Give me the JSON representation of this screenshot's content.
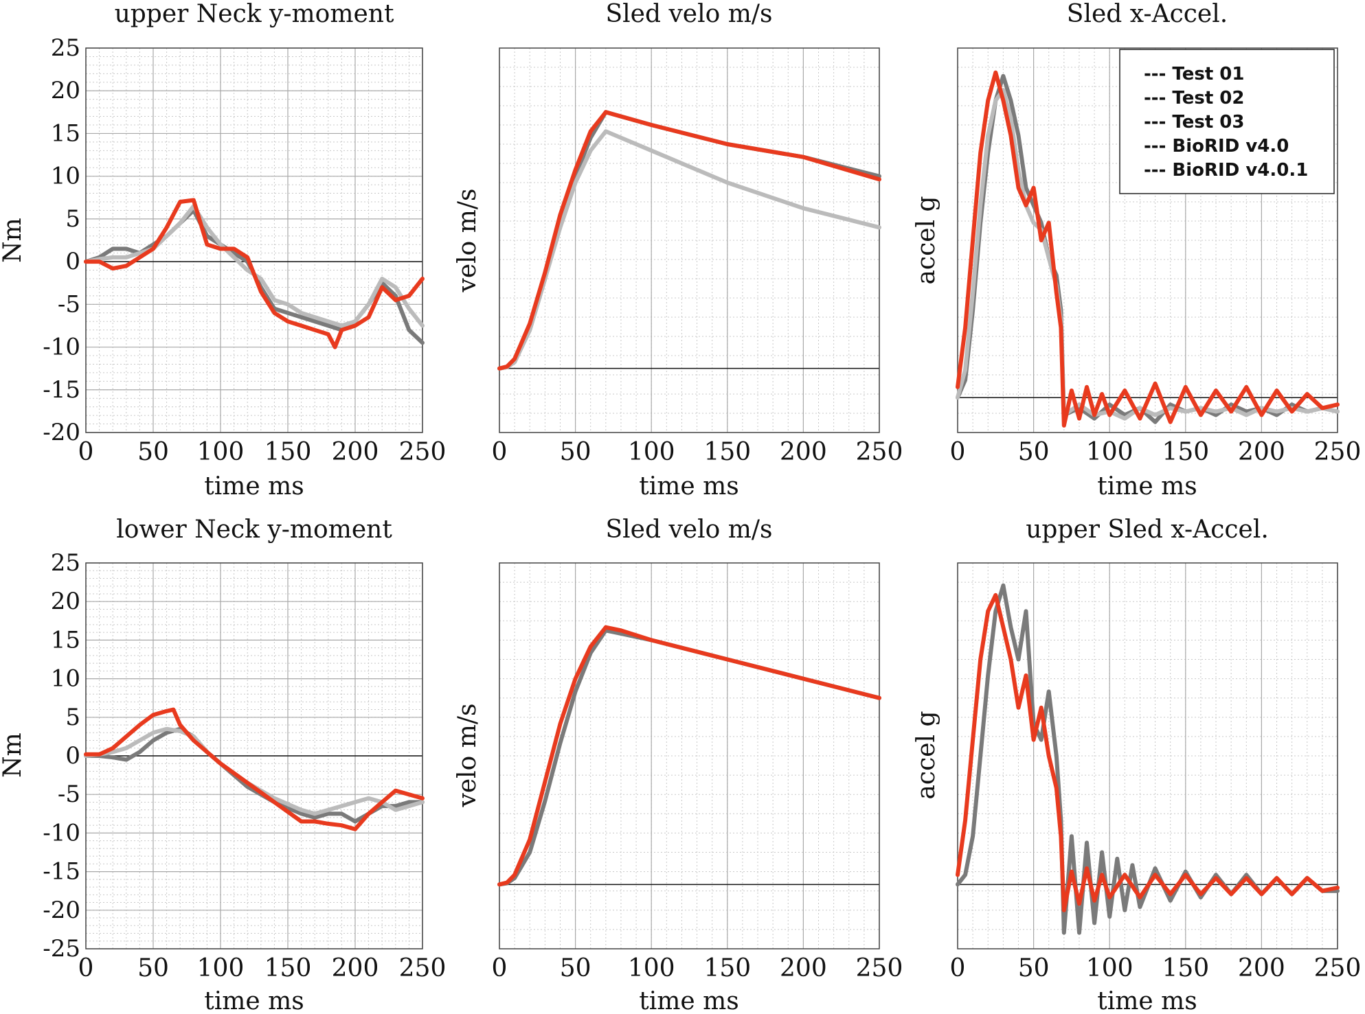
{
  "legend": {
    "entries": [
      {
        "label": "--- Test 01",
        "color": "#000000"
      },
      {
        "label": "--- Test 02",
        "color": "#808080"
      },
      {
        "label": "--- Test 03",
        "color": "#b4b4b4"
      },
      {
        "label": "--- BioRID v4.0",
        "color": "#109010"
      },
      {
        "label": "--- BioRID v4.0.1",
        "color": "#ee2200"
      }
    ]
  },
  "series_colors": {
    "Test 01": "#000000",
    "Test 02": "#7a7a7a",
    "Test 03": "#bbbbbb",
    "BioRID v4.0.1": "#e83a1e"
  },
  "chart_data": [
    {
      "type": "line",
      "title": "upper Neck y-moment",
      "xlabel": "time ms",
      "ylabel": "Nm",
      "xlim": [
        0,
        250
      ],
      "ylim": [
        -20,
        25
      ],
      "xticks": [
        0,
        50,
        100,
        150,
        200,
        250
      ],
      "yticks": [
        -20,
        -15,
        -10,
        -5,
        0,
        5,
        10,
        15,
        20,
        25
      ],
      "grid": true,
      "legend": "none",
      "series": [
        {
          "name": "Test 02",
          "x": [
            0,
            10,
            20,
            30,
            40,
            50,
            60,
            70,
            80,
            90,
            100,
            110,
            120,
            130,
            140,
            150,
            160,
            170,
            180,
            190,
            200,
            210,
            220,
            230,
            240,
            250
          ],
          "y": [
            0,
            0.5,
            1.5,
            1.5,
            1,
            2,
            3,
            4.5,
            6,
            3,
            2,
            1,
            0,
            -3,
            -5.5,
            -6,
            -6.5,
            -7,
            -7.5,
            -8,
            -7,
            -5,
            -2.5,
            -4,
            -8,
            -9.5
          ]
        },
        {
          "name": "Test 03",
          "x": [
            0,
            10,
            20,
            30,
            40,
            50,
            60,
            70,
            80,
            90,
            100,
            110,
            120,
            130,
            140,
            150,
            160,
            170,
            180,
            190,
            200,
            210,
            220,
            230,
            240,
            250
          ],
          "y": [
            0,
            0.3,
            0.5,
            0.5,
            1,
            1.5,
            3,
            4.5,
            6.5,
            4,
            2,
            0.5,
            -1,
            -2,
            -4.5,
            -5,
            -6,
            -6.5,
            -7,
            -7.5,
            -7,
            -5,
            -2,
            -3,
            -5.5,
            -7.5
          ]
        },
        {
          "name": "BioRID v4.0.1",
          "x": [
            0,
            10,
            20,
            30,
            40,
            50,
            60,
            70,
            80,
            90,
            100,
            110,
            120,
            130,
            140,
            150,
            160,
            170,
            180,
            185,
            190,
            200,
            210,
            220,
            230,
            240,
            250
          ],
          "y": [
            0,
            0,
            -0.8,
            -0.5,
            0.5,
            1.5,
            4,
            7,
            7.2,
            2,
            1.5,
            1.5,
            0.5,
            -3.5,
            -6,
            -7,
            -7.5,
            -8,
            -8.5,
            -10,
            -8,
            -7.5,
            -6.5,
            -3,
            -4.5,
            -4,
            -2
          ]
        }
      ]
    },
    {
      "type": "line",
      "title": "Sled velo m/s",
      "xlabel": "time ms",
      "ylabel": "velo m/s",
      "xlim": [
        0,
        250
      ],
      "ylim": [
        -1,
        5
      ],
      "xticks": [
        0,
        50,
        100,
        150,
        200,
        250
      ],
      "yticks": [],
      "grid": true,
      "legend": "none",
      "series": [
        {
          "name": "Test 02",
          "x": [
            0,
            5,
            10,
            20,
            30,
            40,
            50,
            60,
            70,
            100,
            150,
            200,
            250
          ],
          "y": [
            0,
            0.02,
            0.1,
            0.6,
            1.4,
            2.3,
            3.0,
            3.6,
            4.0,
            3.8,
            3.5,
            3.3,
            3.0
          ]
        },
        {
          "name": "Test 03",
          "x": [
            0,
            5,
            10,
            20,
            30,
            40,
            50,
            60,
            70,
            100,
            150,
            200,
            250
          ],
          "y": [
            0,
            0.02,
            0.1,
            0.6,
            1.4,
            2.2,
            2.9,
            3.4,
            3.7,
            3.4,
            2.9,
            2.5,
            2.2
          ]
        },
        {
          "name": "BioRID v4.0.1",
          "x": [
            0,
            5,
            10,
            20,
            30,
            40,
            50,
            60,
            70,
            100,
            150,
            200,
            250
          ],
          "y": [
            0,
            0.03,
            0.15,
            0.7,
            1.5,
            2.4,
            3.1,
            3.7,
            4.0,
            3.8,
            3.5,
            3.3,
            2.95
          ]
        }
      ]
    },
    {
      "type": "line",
      "title": "Sled x-Accel.",
      "xlabel": "time ms",
      "ylabel": "accel g",
      "xlim": [
        0,
        250
      ],
      "ylim": [
        -1,
        10
      ],
      "xticks": [
        0,
        50,
        100,
        150,
        200,
        250
      ],
      "yticks": [],
      "grid": true,
      "legend": "top-right",
      "series": [
        {
          "name": "Test 02",
          "x": [
            0,
            5,
            10,
            15,
            20,
            25,
            30,
            35,
            40,
            45,
            50,
            55,
            60,
            65,
            68,
            70,
            80,
            90,
            100,
            110,
            120,
            130,
            140,
            150,
            160,
            170,
            180,
            190,
            200,
            210,
            220,
            230,
            240,
            250
          ],
          "y": [
            0,
            0.5,
            2.5,
            5,
            7,
            8.5,
            9.2,
            8.5,
            7.5,
            6,
            5.5,
            5,
            4,
            3.5,
            2.5,
            -0.5,
            -0.3,
            -0.6,
            -0.2,
            -0.5,
            -0.3,
            -0.7,
            -0.2,
            -0.4,
            -0.3,
            -0.5,
            -0.2,
            -0.4,
            -0.3,
            -0.5,
            -0.2,
            -0.4,
            -0.3,
            -0.4
          ]
        },
        {
          "name": "Test 03",
          "x": [
            0,
            5,
            10,
            15,
            20,
            25,
            30,
            35,
            40,
            45,
            50,
            55,
            60,
            65,
            68,
            70,
            80,
            90,
            100,
            110,
            120,
            130,
            140,
            150,
            160,
            170,
            180,
            190,
            200,
            210,
            220,
            230,
            240,
            250
          ],
          "y": [
            0,
            0.8,
            3,
            5.5,
            7.5,
            8.5,
            8.8,
            8,
            6.5,
            5.5,
            5,
            4.8,
            4,
            3.2,
            2.2,
            -0.5,
            -0.2,
            -0.5,
            -0.4,
            -0.6,
            -0.3,
            -0.5,
            -0.3,
            -0.4,
            -0.3,
            -0.4,
            -0.3,
            -0.5,
            -0.3,
            -0.4,
            -0.3,
            -0.4,
            -0.3,
            -0.4
          ]
        },
        {
          "name": "BioRID v4.0.1",
          "x": [
            0,
            5,
            10,
            15,
            20,
            25,
            30,
            35,
            40,
            45,
            50,
            55,
            60,
            65,
            68,
            70,
            75,
            80,
            85,
            90,
            95,
            100,
            110,
            120,
            130,
            140,
            150,
            160,
            170,
            180,
            190,
            200,
            210,
            220,
            230,
            240,
            250
          ],
          "y": [
            0.3,
            2,
            4.5,
            7,
            8.5,
            9.3,
            8.5,
            7.5,
            6,
            5.5,
            6,
            4.5,
            5,
            3,
            2,
            -0.8,
            0.2,
            -0.6,
            0.3,
            -0.5,
            0.1,
            -0.5,
            0.2,
            -0.6,
            0.4,
            -0.7,
            0.3,
            -0.5,
            0.2,
            -0.4,
            0.3,
            -0.5,
            0.2,
            -0.4,
            0.1,
            -0.3,
            -0.2
          ]
        }
      ]
    },
    {
      "type": "line",
      "title": "lower Neck y-moment",
      "xlabel": "time ms",
      "ylabel": "Nm",
      "xlim": [
        0,
        250
      ],
      "ylim": [
        -25,
        25
      ],
      "xticks": [
        0,
        50,
        100,
        150,
        200,
        250
      ],
      "yticks": [
        -25,
        -20,
        -15,
        -10,
        -5,
        0,
        5,
        10,
        15,
        20,
        25
      ],
      "grid": true,
      "legend": "none",
      "series": [
        {
          "name": "Test 02",
          "x": [
            0,
            10,
            20,
            30,
            40,
            50,
            60,
            70,
            80,
            90,
            100,
            120,
            140,
            160,
            170,
            180,
            190,
            200,
            210,
            220,
            230,
            240,
            250
          ],
          "y": [
            0,
            0,
            -0.2,
            -0.5,
            0.5,
            2,
            3,
            3.5,
            2.5,
            0.5,
            -1,
            -4,
            -6,
            -7.5,
            -8,
            -7.5,
            -7.5,
            -8.5,
            -7.5,
            -6.5,
            -6.5,
            -6,
            -6
          ]
        },
        {
          "name": "Test 03",
          "x": [
            0,
            10,
            20,
            30,
            40,
            50,
            60,
            70,
            80,
            90,
            100,
            120,
            140,
            160,
            170,
            180,
            190,
            200,
            210,
            220,
            230,
            240,
            250
          ],
          "y": [
            0,
            0.2,
            0.5,
            1,
            2,
            3,
            3.5,
            3.2,
            2.5,
            0.5,
            -1,
            -3.5,
            -5.5,
            -7,
            -7.5,
            -7,
            -6.5,
            -6,
            -5.5,
            -6,
            -7,
            -6.5,
            -6
          ]
        },
        {
          "name": "BioRID v4.0.1",
          "x": [
            0,
            10,
            20,
            30,
            40,
            50,
            60,
            65,
            70,
            80,
            90,
            100,
            120,
            140,
            160,
            170,
            180,
            190,
            200,
            210,
            220,
            230,
            240,
            250
          ],
          "y": [
            0.2,
            0.2,
            1,
            2.5,
            4,
            5.3,
            5.8,
            6,
            4,
            2,
            0.5,
            -1,
            -3.5,
            -6,
            -8.5,
            -8.5,
            -8.8,
            -9,
            -9.5,
            -7.5,
            -6,
            -4.5,
            -5,
            -5.5
          ]
        }
      ]
    },
    {
      "type": "line",
      "title": "Sled velo m/s",
      "xlabel": "time ms",
      "ylabel": "velo m/s",
      "xlim": [
        0,
        250
      ],
      "ylim": [
        -1,
        5
      ],
      "xticks": [
        0,
        50,
        100,
        150,
        200,
        250
      ],
      "yticks": [],
      "grid": true,
      "legend": "none",
      "series": [
        {
          "name": "Test 02",
          "x": [
            0,
            5,
            10,
            20,
            30,
            40,
            50,
            60,
            70,
            80,
            100,
            150,
            200,
            250
          ],
          "y": [
            0,
            0.02,
            0.1,
            0.5,
            1.3,
            2.2,
            3.0,
            3.6,
            3.95,
            3.9,
            3.8,
            3.5,
            3.2,
            2.9
          ]
        },
        {
          "name": "BioRID v4.0.1",
          "x": [
            0,
            5,
            10,
            20,
            30,
            40,
            50,
            60,
            70,
            80,
            100,
            150,
            200,
            250
          ],
          "y": [
            0,
            0.03,
            0.15,
            0.7,
            1.6,
            2.5,
            3.2,
            3.7,
            4.0,
            3.95,
            3.8,
            3.5,
            3.2,
            2.9
          ]
        }
      ]
    },
    {
      "type": "line",
      "title": "upper Sled x-Accel.",
      "xlabel": "time ms",
      "ylabel": "accel g",
      "xlim": [
        0,
        250
      ],
      "ylim": [
        -2,
        10
      ],
      "xticks": [
        0,
        50,
        100,
        150,
        200,
        250
      ],
      "yticks": [],
      "grid": true,
      "legend": "none",
      "series": [
        {
          "name": "Test 02",
          "x": [
            0,
            5,
            10,
            15,
            20,
            25,
            30,
            35,
            40,
            45,
            50,
            55,
            60,
            65,
            68,
            70,
            75,
            80,
            85,
            90,
            95,
            100,
            105,
            110,
            115,
            120,
            130,
            140,
            150,
            160,
            170,
            180,
            190,
            200,
            210,
            220,
            230,
            240,
            250
          ],
          "y": [
            0,
            0.3,
            1.5,
            4,
            6.5,
            8.5,
            9.3,
            8,
            7,
            8.5,
            5,
            4.5,
            6,
            4,
            2,
            -1.5,
            1.5,
            -1.5,
            1.3,
            -1.2,
            1,
            -1,
            0.8,
            -0.8,
            0.6,
            -0.7,
            0.5,
            -0.5,
            0.4,
            -0.4,
            0.3,
            -0.3,
            0.3,
            -0.3,
            0.2,
            -0.3,
            0.2,
            -0.2,
            -0.2
          ]
        },
        {
          "name": "BioRID v4.0.1",
          "x": [
            0,
            5,
            10,
            15,
            20,
            25,
            30,
            35,
            40,
            45,
            50,
            55,
            60,
            65,
            68,
            70,
            75,
            80,
            85,
            90,
            95,
            100,
            110,
            120,
            130,
            140,
            150,
            160,
            170,
            180,
            190,
            200,
            210,
            220,
            230,
            240,
            250
          ],
          "y": [
            0.3,
            2,
            4.5,
            7,
            8.5,
            9,
            8,
            7,
            5.5,
            6.5,
            4.5,
            5.5,
            4,
            3,
            1.5,
            -0.8,
            0.4,
            -0.6,
            0.5,
            -0.5,
            0.3,
            -0.4,
            0.3,
            -0.4,
            0.3,
            -0.3,
            0.3,
            -0.3,
            0.2,
            -0.3,
            0.2,
            -0.3,
            0.2,
            -0.3,
            0.2,
            -0.2,
            -0.1
          ]
        }
      ]
    }
  ]
}
